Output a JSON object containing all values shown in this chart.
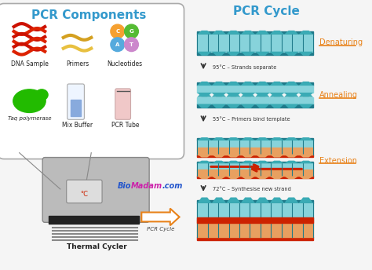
{
  "bg_color": "#f5f5f5",
  "title_left": "PCR Components",
  "title_right": "PCR Cycle",
  "title_color": "#3399cc",
  "orange_color": "#e8821a",
  "teal_color": "#3aabb5",
  "teal_dark": "#1e7a8a",
  "teal_light": "#87d3db",
  "red_color": "#cc2200",
  "box_bg": "#ffffff",
  "box_border": "#aaaaaa",
  "stage_labels": [
    "Denaturing",
    "Annealing",
    "Extension"
  ],
  "stage_label_color": "#e8821a",
  "step_texts": [
    "95°C – Strands separate",
    "55°C – Primers bind template",
    "72°C – Synthesise new strand"
  ],
  "step_text_color": "#333333",
  "biomadam_color_bio": "#2255cc",
  "biomadam_color_madam": "#cc22aa",
  "pcr_cycle_arrow_color": "#e8821a",
  "thermal_cycler_color": "#aaaaaa",
  "dna_sample_label": "DNA Sample",
  "primers_label": "Primers",
  "nucleotides_label": "Nucleotides",
  "taq_label": "Taq polymerase",
  "buffer_label": "Mix Buffer",
  "tube_label": "PCR Tube",
  "thermal_label": "Thermal Cycler",
  "pcr_cycle_label": "PCR Cycle"
}
